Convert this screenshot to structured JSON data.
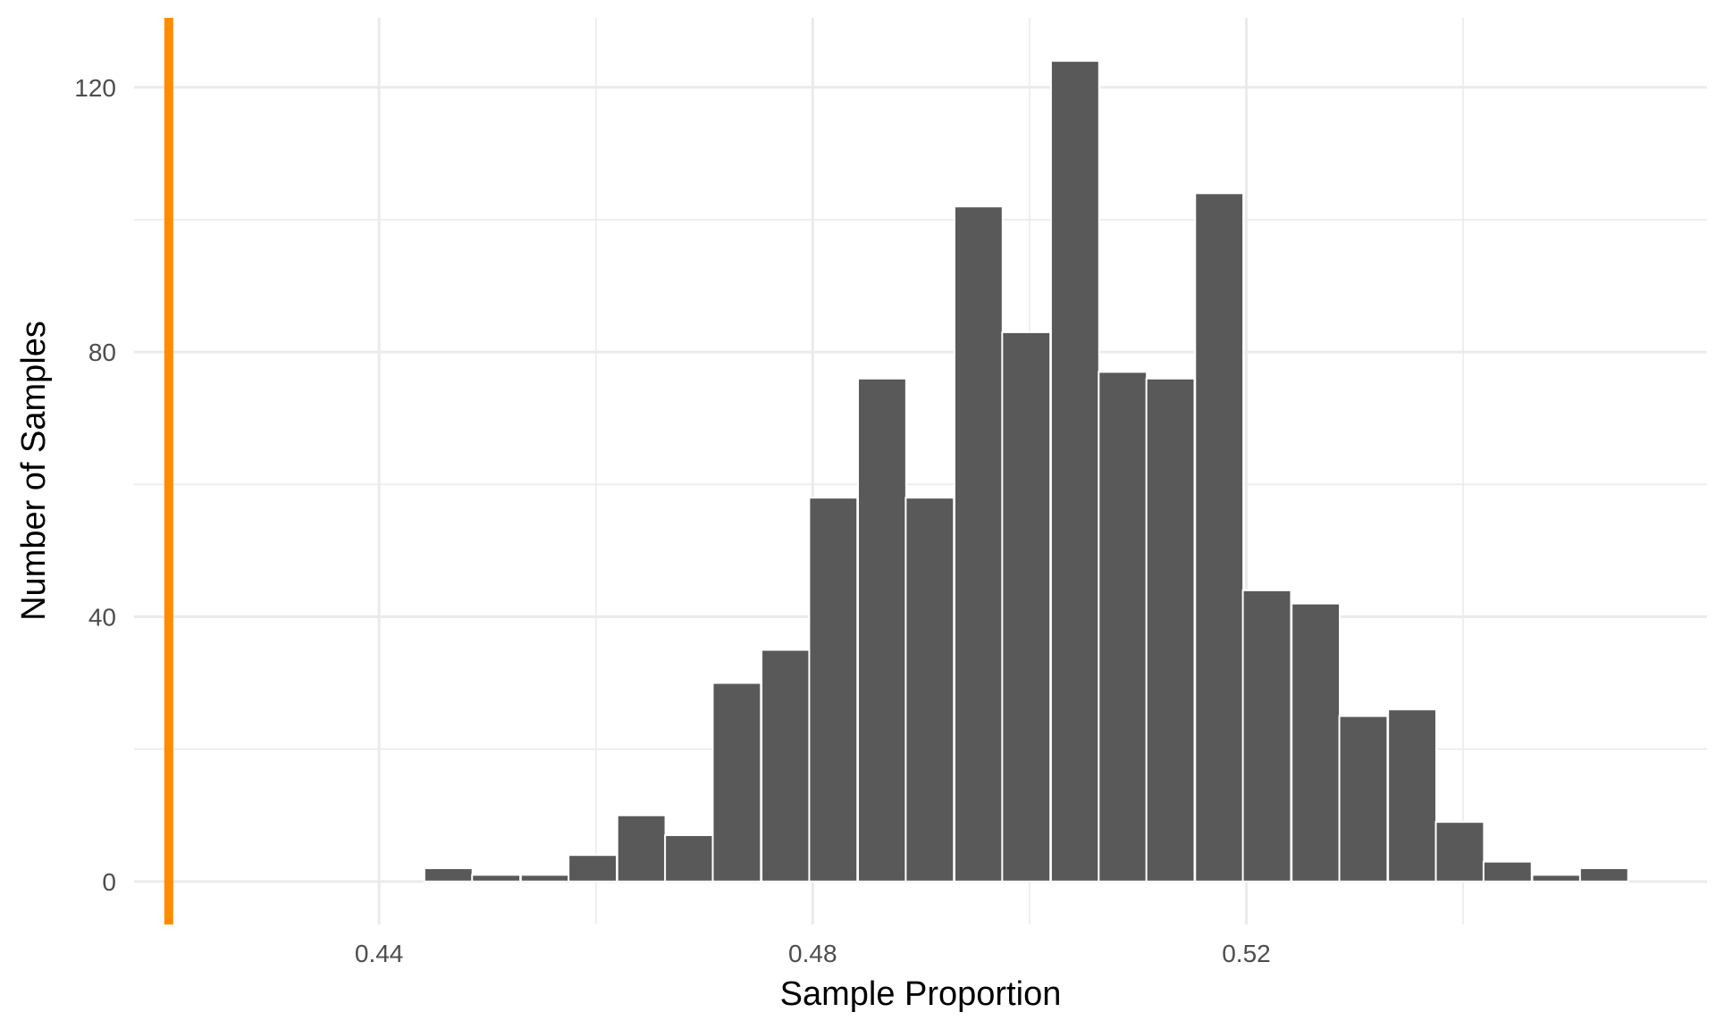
{
  "chart_data": {
    "type": "bar",
    "title": "",
    "xlabel": "Sample Proportion",
    "ylabel": "Number of Samples",
    "xlim": [
      0.4174,
      0.5625
    ],
    "ylim": [
      -6.5,
      130.5
    ],
    "x_ticks": [
      {
        "value": 0.44,
        "label": "0.44"
      },
      {
        "value": 0.48,
        "label": "0.48"
      },
      {
        "value": 0.52,
        "label": "0.52"
      }
    ],
    "x_minor_ticks": [
      0.46,
      0.5,
      0.54
    ],
    "y_ticks": [
      {
        "value": 0,
        "label": "0"
      },
      {
        "value": 40,
        "label": "40"
      },
      {
        "value": 80,
        "label": "80"
      },
      {
        "value": 120,
        "label": "120"
      }
    ],
    "y_minor_ticks": [
      20,
      60,
      100
    ],
    "bin_width": 0.00444,
    "bin_centers": [
      0.4242,
      0.4286,
      0.4331,
      0.4375,
      0.4419,
      0.4464,
      0.4508,
      0.4553,
      0.4597,
      0.4642,
      0.4686,
      0.473,
      0.4775,
      0.4819,
      0.4864,
      0.4908,
      0.4953,
      0.4997,
      0.5042,
      0.5086,
      0.513,
      0.5175,
      0.5219,
      0.5264,
      0.5308,
      0.5353,
      0.5397,
      0.5441,
      0.5486,
      0.553
    ],
    "values": [
      0,
      0,
      0,
      0,
      0,
      2,
      1,
      1,
      4,
      10,
      7,
      30,
      35,
      58,
      76,
      58,
      102,
      83,
      124,
      77,
      76,
      104,
      44,
      42,
      25,
      26,
      9,
      3,
      1,
      2
    ],
    "reference_line": {
      "x": 0.4206,
      "color": "#ff8c00"
    },
    "bar_color": "#595959"
  }
}
